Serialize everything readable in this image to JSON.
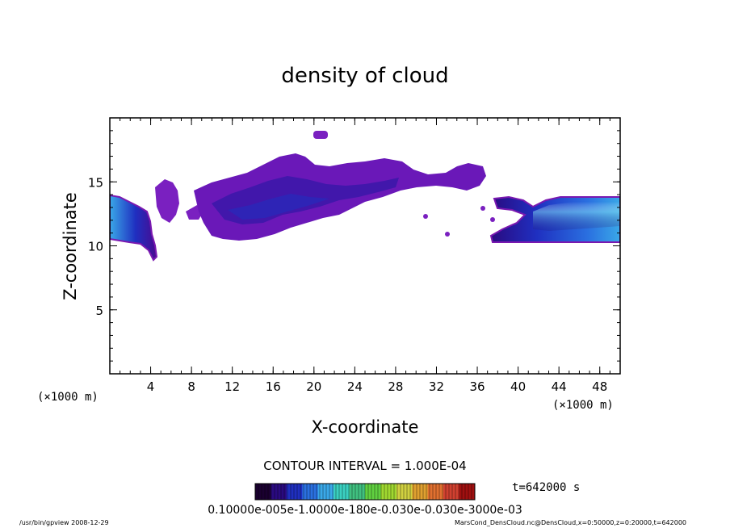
{
  "chart_data": {
    "type": "heatmap",
    "title": "density of cloud",
    "xlabel": "X-coordinate",
    "ylabel": "Z-coordinate",
    "x_unit": "(×1000 m)",
    "y_unit": "(×1000 m)",
    "xlim": [
      0,
      50
    ],
    "ylim": [
      0,
      20
    ],
    "x_ticks": [
      4,
      8,
      12,
      16,
      20,
      24,
      28,
      32,
      36,
      40,
      44,
      48
    ],
    "y_ticks": [
      5,
      10,
      15
    ],
    "grid": false,
    "contour_interval_text": "CONTOUR INTERVAL = 1.000E-04",
    "time_text": "t=642000 s",
    "colorbar_labels_text": "0.10000e-005e-1.0000e-180e-0.030e-0.030e-3000e-03",
    "colorbar_colors": [
      "#1a0030",
      "#2a0a80",
      "#1f2fc0",
      "#2a70e0",
      "#3aa8e8",
      "#3ad0c0",
      "#40c080",
      "#60d040",
      "#a0d830",
      "#d0d040",
      "#e0a030",
      "#e07030",
      "#d04030",
      "#a01010"
    ],
    "footer_left": "/usr/bin/gpview   2008-12-29",
    "footer_right": "MarsCond_DensCloud.nc@DensCloud,x=0:50000,z=0:20000,t=642000",
    "cloud_regions": [
      {
        "x": [
          10.0,
          38.0
        ],
        "z": [
          10.5,
          17.0
        ],
        "level": "low"
      },
      {
        "x": [
          0.0,
          4.5
        ],
        "z": [
          9.0,
          13.8
        ],
        "level": "high"
      },
      {
        "x": [
          37.5,
          50.0
        ],
        "z": [
          10.5,
          13.5
        ],
        "level": "high"
      },
      {
        "x": [
          4.0,
          7.0
        ],
        "z": [
          11.0,
          14.5
        ],
        "level": "low"
      },
      {
        "x": [
          19.8,
          21.2
        ],
        "z": [
          18.3,
          18.9
        ],
        "level": "low"
      }
    ]
  }
}
